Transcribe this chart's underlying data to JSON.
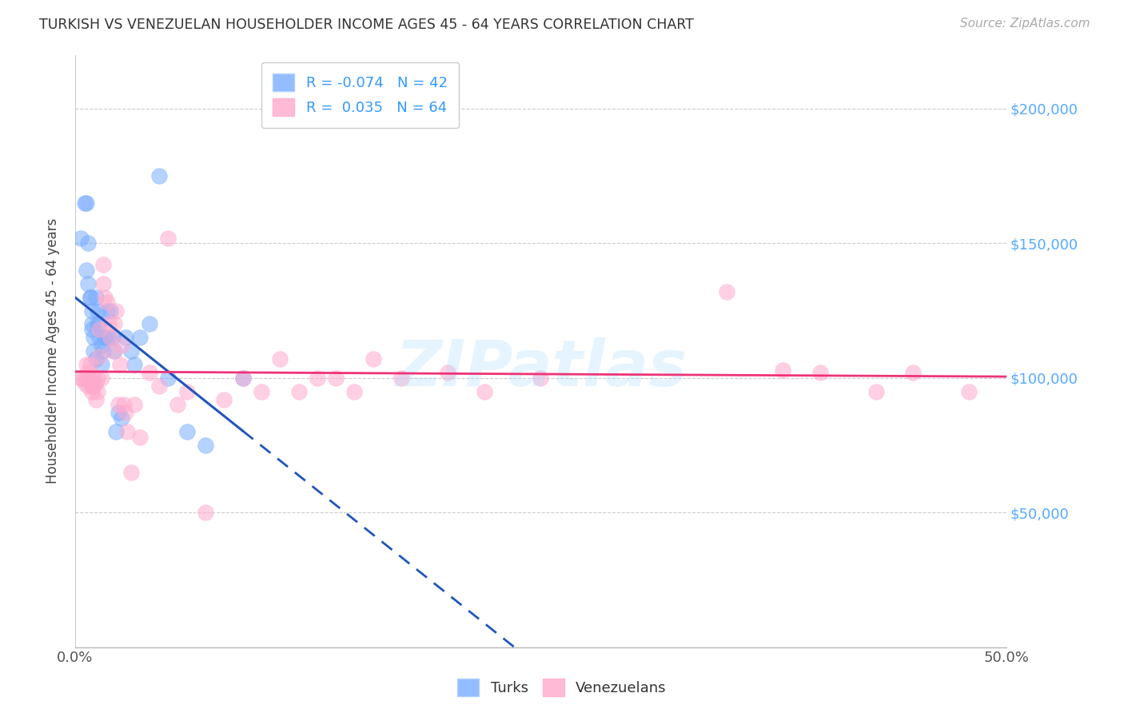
{
  "title": "TURKISH VS VENEZUELAN HOUSEHOLDER INCOME AGES 45 - 64 YEARS CORRELATION CHART",
  "source": "Source: ZipAtlas.com",
  "ylabel": "Householder Income Ages 45 - 64 years",
  "ytick_labels": [
    "$50,000",
    "$100,000",
    "$150,000",
    "$200,000"
  ],
  "ytick_values": [
    50000,
    100000,
    150000,
    200000
  ],
  "ylim": [
    0,
    220000
  ],
  "xlim": [
    0.0,
    0.5
  ],
  "turks_color": "#7aadff",
  "venezuelans_color": "#ffaacc",
  "trend_turks_color": "#2255bb",
  "trend_venezuelans_color": "#ee3377",
  "background_color": "#ffffff",
  "turks_x": [
    0.003,
    0.005,
    0.006,
    0.006,
    0.007,
    0.007,
    0.008,
    0.008,
    0.009,
    0.009,
    0.009,
    0.01,
    0.01,
    0.011,
    0.011,
    0.012,
    0.012,
    0.013,
    0.013,
    0.014,
    0.014,
    0.015,
    0.016,
    0.016,
    0.017,
    0.018,
    0.019,
    0.02,
    0.021,
    0.022,
    0.023,
    0.025,
    0.027,
    0.03,
    0.032,
    0.035,
    0.04,
    0.045,
    0.05,
    0.06,
    0.07,
    0.09
  ],
  "turks_y": [
    152000,
    165000,
    165000,
    140000,
    150000,
    135000,
    130000,
    130000,
    125000,
    118000,
    120000,
    115000,
    110000,
    130000,
    107000,
    125000,
    120000,
    120000,
    115000,
    112000,
    105000,
    110000,
    115000,
    115000,
    125000,
    115000,
    125000,
    115000,
    110000,
    80000,
    87000,
    85000,
    115000,
    110000,
    105000,
    115000,
    120000,
    175000,
    100000,
    80000,
    75000,
    100000
  ],
  "venezuelans_x": [
    0.003,
    0.004,
    0.005,
    0.006,
    0.006,
    0.007,
    0.007,
    0.008,
    0.008,
    0.009,
    0.009,
    0.009,
    0.01,
    0.01,
    0.011,
    0.011,
    0.012,
    0.012,
    0.013,
    0.013,
    0.014,
    0.015,
    0.015,
    0.016,
    0.017,
    0.018,
    0.019,
    0.02,
    0.021,
    0.022,
    0.023,
    0.024,
    0.025,
    0.026,
    0.027,
    0.028,
    0.03,
    0.032,
    0.035,
    0.04,
    0.045,
    0.05,
    0.055,
    0.06,
    0.07,
    0.08,
    0.09,
    0.1,
    0.11,
    0.12,
    0.13,
    0.14,
    0.15,
    0.16,
    0.175,
    0.2,
    0.22,
    0.25,
    0.35,
    0.38,
    0.4,
    0.43,
    0.45,
    0.48
  ],
  "venezuelans_y": [
    100000,
    100000,
    98000,
    105000,
    100000,
    102000,
    97000,
    105000,
    100000,
    98000,
    97000,
    95000,
    97000,
    100000,
    92000,
    98000,
    95000,
    100000,
    108000,
    118000,
    100000,
    142000,
    135000,
    130000,
    128000,
    120000,
    115000,
    110000,
    120000,
    125000,
    90000,
    105000,
    112000,
    90000,
    87000,
    80000,
    65000,
    90000,
    78000,
    102000,
    97000,
    152000,
    90000,
    95000,
    50000,
    92000,
    100000,
    95000,
    107000,
    95000,
    100000,
    100000,
    95000,
    107000,
    100000,
    102000,
    95000,
    100000,
    132000,
    103000,
    102000,
    95000,
    102000,
    95000
  ]
}
